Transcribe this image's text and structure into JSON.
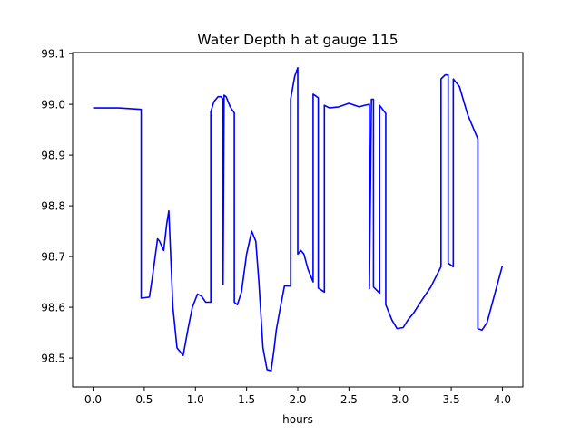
{
  "chart_data": {
    "type": "line",
    "title": "Water Depth h at gauge 115",
    "xlabel": "hours",
    "ylabel": "",
    "xlim": [
      -0.2,
      4.2
    ],
    "ylim": [
      98.443,
      99.102
    ],
    "xticks": [
      0.0,
      0.5,
      1.0,
      1.5,
      2.0,
      2.5,
      3.0,
      3.5,
      4.0
    ],
    "xtick_labels": [
      "0.0",
      "0.5",
      "1.0",
      "1.5",
      "2.0",
      "2.5",
      "3.0",
      "3.5",
      "4.0"
    ],
    "yticks": [
      98.5,
      98.6,
      98.7,
      98.8,
      98.9,
      99.0,
      99.1
    ],
    "ytick_labels": [
      "98.5",
      "98.6",
      "98.7",
      "98.8",
      "98.9",
      "99.0",
      "99.1"
    ],
    "grid": false,
    "series": [
      {
        "color": "#0000ff",
        "x": [
          0.0,
          0.25,
          0.47,
          0.47,
          0.55,
          0.58,
          0.63,
          0.65,
          0.69,
          0.72,
          0.74,
          0.78,
          0.82,
          0.88,
          0.93,
          0.97,
          1.02,
          1.06,
          1.1,
          1.15,
          1.15,
          1.18,
          1.22,
          1.25,
          1.27,
          1.27,
          1.28,
          1.3,
          1.34,
          1.38,
          1.38,
          1.41,
          1.45,
          1.5,
          1.55,
          1.59,
          1.62,
          1.66,
          1.7,
          1.74,
          1.77,
          1.79,
          1.83,
          1.87,
          1.93,
          1.93,
          1.97,
          2.0,
          2.0,
          2.03,
          2.06,
          2.1,
          2.15,
          2.15,
          2.2,
          2.2,
          2.26,
          2.26,
          2.31,
          2.4,
          2.5,
          2.6,
          2.65,
          2.7,
          2.7,
          2.72,
          2.74,
          2.74,
          2.8,
          2.8,
          2.86,
          2.86,
          2.92,
          2.97,
          3.03,
          3.08,
          3.13,
          3.2,
          3.3,
          3.4,
          3.4,
          3.44,
          3.47,
          3.47,
          3.52,
          3.52,
          3.58,
          3.66,
          3.76,
          3.76,
          3.8,
          3.85,
          4.0
        ],
        "y": [
          98.993,
          98.993,
          98.99,
          98.618,
          98.62,
          98.66,
          98.735,
          98.73,
          98.712,
          98.765,
          98.79,
          98.6,
          98.52,
          98.505,
          98.56,
          98.6,
          98.626,
          98.622,
          98.61,
          98.61,
          98.985,
          99.005,
          99.015,
          99.015,
          99.01,
          98.645,
          99.018,
          99.015,
          98.995,
          98.983,
          98.61,
          98.605,
          98.63,
          98.705,
          98.75,
          98.73,
          98.65,
          98.52,
          98.477,
          98.475,
          98.52,
          98.555,
          98.6,
          98.642,
          98.642,
          99.01,
          99.055,
          99.072,
          98.705,
          98.712,
          98.705,
          98.675,
          98.65,
          99.02,
          99.013,
          98.638,
          98.63,
          98.998,
          98.993,
          98.995,
          99.002,
          98.995,
          98.998,
          99.0,
          98.637,
          99.01,
          99.01,
          98.64,
          98.628,
          98.998,
          98.982,
          98.605,
          98.575,
          98.558,
          98.56,
          98.576,
          98.588,
          98.61,
          98.64,
          98.68,
          99.05,
          99.058,
          99.058,
          98.687,
          98.68,
          99.05,
          99.035,
          98.98,
          98.932,
          98.558,
          98.555,
          98.57,
          98.682
        ]
      }
    ]
  }
}
